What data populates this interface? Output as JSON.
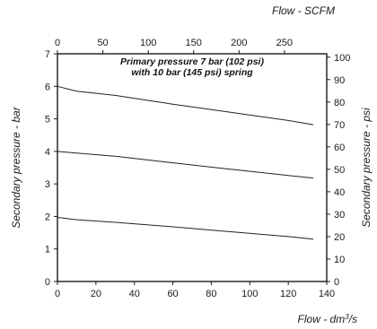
{
  "chart_data": {
    "type": "line",
    "xlabel_bottom": "Flow - dm³/s",
    "xlabel_bottom_base": "Flow - dm",
    "xlabel_bottom_sup": "3",
    "xlabel_bottom_end": "/s",
    "xlabel_top": "Flow - SCFM",
    "ylabel_left": "Secondary pressure - bar",
    "ylabel_right": "Secondary pressure - psi",
    "xlim": [
      0,
      140
    ],
    "xticks": [
      0,
      20,
      40,
      60,
      80,
      100,
      120,
      140
    ],
    "ylim": [
      0,
      7
    ],
    "yticks": [
      0,
      1,
      2,
      3,
      4,
      5,
      6,
      7
    ],
    "x2lim": [
      0,
      296.6
    ],
    "x2ticks": [
      0,
      50,
      100,
      150,
      200,
      250
    ],
    "y2lim": [
      0,
      101.5
    ],
    "y2ticks": [
      0,
      10,
      20,
      30,
      40,
      50,
      60,
      70,
      80,
      90,
      100
    ],
    "grid": false,
    "annotation": [
      "Primary pressure 7 bar (102 psi)",
      "with 10 bar (145 psi) spring"
    ],
    "series": [
      {
        "x": [
          0,
          10,
          30,
          60,
          90,
          120,
          133
        ],
        "y": [
          6.0,
          5.85,
          5.72,
          5.45,
          5.2,
          4.95,
          4.82
        ]
      },
      {
        "x": [
          0,
          10,
          30,
          60,
          90,
          120,
          133
        ],
        "y": [
          4.0,
          3.95,
          3.85,
          3.65,
          3.45,
          3.26,
          3.18
        ]
      },
      {
        "x": [
          0,
          10,
          30,
          60,
          90,
          120,
          133
        ],
        "y": [
          1.97,
          1.9,
          1.82,
          1.68,
          1.53,
          1.38,
          1.3
        ]
      }
    ]
  }
}
